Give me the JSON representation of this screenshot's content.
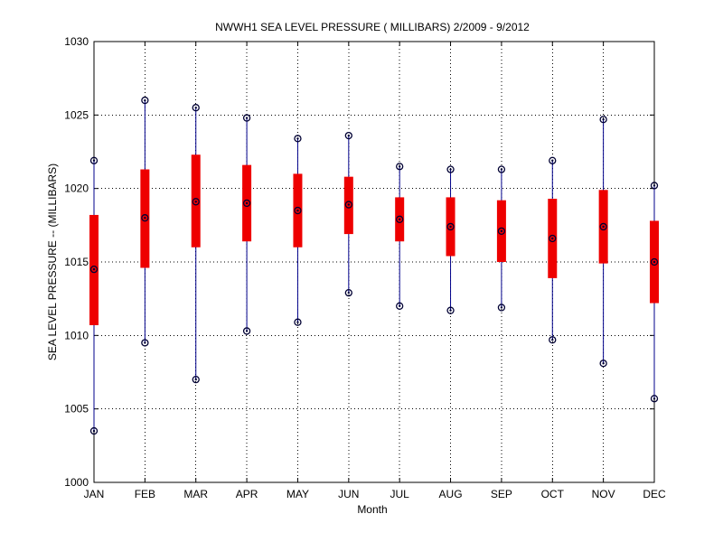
{
  "chart_data": {
    "type": "boxplot",
    "title": "NWWH1  SEA LEVEL PRESSURE ( MILLIBARS) 2/2009 - 9/2012",
    "xlabel": "Month",
    "ylabel": "SEA LEVEL PRESSURE -- (MILLIBARS)",
    "categories": [
      "JAN",
      "FEB",
      "MAR",
      "APR",
      "MAY",
      "JUN",
      "JUL",
      "AUG",
      "SEP",
      "OCT",
      "NOV",
      "DEC"
    ],
    "ylim": [
      1000,
      1030
    ],
    "yticks": [
      1000,
      1005,
      1010,
      1015,
      1020,
      1025,
      1030
    ],
    "grid": true,
    "colors": {
      "box": "#ee0000",
      "whisker": "#00008b",
      "marker": "#000033"
    },
    "series": [
      {
        "category": "JAN",
        "min": 1003.5,
        "q1": 1010.7,
        "median": 1014.5,
        "q3": 1018.2,
        "max": 1021.9
      },
      {
        "category": "FEB",
        "min": 1009.5,
        "q1": 1014.6,
        "median": 1018.0,
        "q3": 1021.3,
        "max": 1026.0
      },
      {
        "category": "MAR",
        "min": 1007.0,
        "q1": 1016.0,
        "median": 1019.1,
        "q3": 1022.3,
        "max": 1025.5
      },
      {
        "category": "APR",
        "min": 1010.3,
        "q1": 1016.4,
        "median": 1019.0,
        "q3": 1021.6,
        "max": 1024.8
      },
      {
        "category": "MAY",
        "min": 1010.9,
        "q1": 1016.0,
        "median": 1018.5,
        "q3": 1021.0,
        "max": 1023.4
      },
      {
        "category": "JUN",
        "min": 1012.9,
        "q1": 1016.9,
        "median": 1018.9,
        "q3": 1020.8,
        "max": 1023.6
      },
      {
        "category": "JUL",
        "min": 1012.0,
        "q1": 1016.4,
        "median": 1017.9,
        "q3": 1019.4,
        "max": 1021.5
      },
      {
        "category": "AUG",
        "min": 1011.7,
        "q1": 1015.4,
        "median": 1017.4,
        "q3": 1019.4,
        "max": 1021.3
      },
      {
        "category": "SEP",
        "min": 1011.9,
        "q1": 1015.0,
        "median": 1017.1,
        "q3": 1019.2,
        "max": 1021.3
      },
      {
        "category": "OCT",
        "min": 1009.7,
        "q1": 1013.9,
        "median": 1016.6,
        "q3": 1019.3,
        "max": 1021.9
      },
      {
        "category": "NOV",
        "min": 1008.1,
        "q1": 1014.9,
        "median": 1017.4,
        "q3": 1019.9,
        "max": 1024.7
      },
      {
        "category": "DEC",
        "min": 1005.7,
        "q1": 1012.2,
        "median": 1015.0,
        "q3": 1017.8,
        "max": 1020.2
      }
    ]
  }
}
